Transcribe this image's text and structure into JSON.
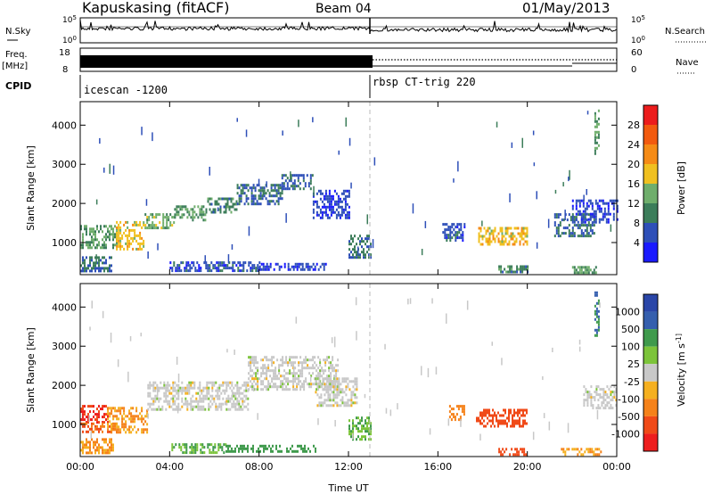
{
  "header": {
    "station": "Kapuskasing (fitACF)",
    "beam": "Beam 04",
    "date": "01/May/2013"
  },
  "top_panels": {
    "nsky_label": "N.Sky",
    "nsky_ticks": [
      "10^5",
      "10^0"
    ],
    "nsearch_ticks": [
      "10^5",
      "10^0"
    ],
    "nsearch_label": "N.Search",
    "freq_label": "Freq.",
    "freq_unit": "[MHz]",
    "freq_ticks": [
      "18",
      "8"
    ],
    "nave_ticks": [
      "60",
      "0"
    ],
    "nave_label": "Nave",
    "cpid_label": "CPID",
    "cpid_segments": [
      "icescan -1200",
      "rbsp CT-trig 220"
    ],
    "cpid_switch_hour": 13.0
  },
  "colors": {
    "power": [
      "#1a1aff",
      "#2e4fb8",
      "#3c7d5a",
      "#6fae6c",
      "#f0c020",
      "#f58b16",
      "#f25a0f",
      "#ec1c1c"
    ],
    "velocity": [
      "#ee1e1e",
      "#f04a18",
      "#f5821a",
      "#f5b020",
      "#c8c8c8",
      "#7cc43a",
      "#3f9a4c",
      "#355fae",
      "#2a46a8"
    ],
    "ground_scatter": "#a0a0a0"
  },
  "chart_data": [
    {
      "type": "heatmap",
      "title": "Power",
      "xlabel": "",
      "ylabel": "Slant Range [km]",
      "x_ticks": [
        "00:00",
        "04:00",
        "08:00",
        "12:00",
        "16:00",
        "20:00",
        "00:00"
      ],
      "xlim_hours": [
        0,
        24
      ],
      "ylim_km": [
        180,
        4600
      ],
      "y_ticks": [
        1000,
        2000,
        3000,
        4000
      ],
      "colorbar_label": "Power [dB]",
      "colorbar_ticks": [
        "4",
        "8",
        "12",
        "16",
        "20",
        "24",
        "28"
      ],
      "colorbar_range": [
        0,
        32
      ],
      "regions": [
        {
          "t": [
            0.0,
            1.6
          ],
          "r": [
            850,
            1450
          ],
          "v": 12
        },
        {
          "t": [
            1.6,
            2.8
          ],
          "r": [
            850,
            1550
          ],
          "v": 18
        },
        {
          "t": [
            2.8,
            4.2
          ],
          "r": [
            1400,
            1750
          ],
          "v": 14
        },
        {
          "t": [
            4.2,
            5.6
          ],
          "r": [
            1600,
            1950
          ],
          "v": 12
        },
        {
          "t": [
            5.6,
            7.0
          ],
          "r": [
            1750,
            2150
          ],
          "v": 10
        },
        {
          "t": [
            7.0,
            9.0
          ],
          "r": [
            2000,
            2500
          ],
          "v": 8
        },
        {
          "t": [
            9.0,
            10.4
          ],
          "r": [
            2400,
            2750
          ],
          "v": 7
        },
        {
          "t": [
            10.4,
            12.0
          ],
          "r": [
            1600,
            2350
          ],
          "v": 5
        },
        {
          "t": [
            0.0,
            1.4
          ],
          "r": [
            300,
            650
          ],
          "v": 8
        },
        {
          "t": [
            4.0,
            8.0
          ],
          "r": [
            300,
            520
          ],
          "v": 6
        },
        {
          "t": [
            8.0,
            11.0
          ],
          "r": [
            280,
            480
          ],
          "v": 5
        },
        {
          "t": [
            12.0,
            13.0
          ],
          "r": [
            650,
            1200
          ],
          "v": 9
        },
        {
          "t": [
            16.2,
            17.2
          ],
          "r": [
            1050,
            1500
          ],
          "v": 6
        },
        {
          "t": [
            17.8,
            20.0
          ],
          "r": [
            950,
            1400
          ],
          "v": 18
        },
        {
          "t": [
            18.7,
            20.0
          ],
          "r": [
            250,
            420
          ],
          "v": 10
        },
        {
          "t": [
            21.2,
            23.0
          ],
          "r": [
            1200,
            1750
          ],
          "v": 8
        },
        {
          "t": [
            22.0,
            24.0
          ],
          "r": [
            1500,
            2100
          ],
          "v": 5
        },
        {
          "t": [
            22.0,
            23.1
          ],
          "r": [
            230,
            400
          ],
          "v": 12
        },
        {
          "t": [
            23.0,
            23.2
          ],
          "r": [
            3300,
            4400
          ],
          "v": 12
        }
      ]
    },
    {
      "type": "heatmap",
      "title": "Velocity",
      "xlabel": "Time UT",
      "ylabel": "Slant Range [km]",
      "x_ticks": [
        "00:00",
        "04:00",
        "08:00",
        "12:00",
        "16:00",
        "20:00",
        "00:00"
      ],
      "xlim_hours": [
        0,
        24
      ],
      "ylim_km": [
        180,
        4600
      ],
      "y_ticks": [
        1000,
        2000,
        3000,
        4000
      ],
      "colorbar_label": "Velocity [m s^-1]",
      "colorbar_ticks": [
        "1000",
        "500",
        "100",
        "25",
        "-25",
        "-100",
        "-500",
        "-1000"
      ],
      "regions": [
        {
          "t": [
            0.0,
            1.2
          ],
          "r": [
            1050,
            1500
          ],
          "v": -1000
        },
        {
          "t": [
            0.0,
            1.6
          ],
          "r": [
            800,
            1050
          ],
          "v": -500
        },
        {
          "t": [
            1.2,
            3.0
          ],
          "r": [
            800,
            1450
          ],
          "v": -100
        },
        {
          "t": [
            3.0,
            7.5
          ],
          "r": [
            1400,
            2100
          ],
          "v": 0
        },
        {
          "t": [
            7.5,
            11.5
          ],
          "r": [
            1900,
            2750
          ],
          "v": 0
        },
        {
          "t": [
            10.5,
            12.4
          ],
          "r": [
            1500,
            2200
          ],
          "v": 0
        },
        {
          "t": [
            0.0,
            1.5
          ],
          "r": [
            300,
            650
          ],
          "v": -100
        },
        {
          "t": [
            4.0,
            6.5
          ],
          "r": [
            300,
            520
          ],
          "v": 100
        },
        {
          "t": [
            6.5,
            10.5
          ],
          "r": [
            280,
            480
          ],
          "v": 250
        },
        {
          "t": [
            12.0,
            13.0
          ],
          "r": [
            650,
            1200
          ],
          "v": 100
        },
        {
          "t": [
            16.5,
            17.2
          ],
          "r": [
            1100,
            1500
          ],
          "v": -250
        },
        {
          "t": [
            17.7,
            20.0
          ],
          "r": [
            950,
            1400
          ],
          "v": -700
        },
        {
          "t": [
            18.7,
            20.0
          ],
          "r": [
            250,
            400
          ],
          "v": -700
        },
        {
          "t": [
            22.5,
            24.0
          ],
          "r": [
            1400,
            2000
          ],
          "v": 0
        },
        {
          "t": [
            21.5,
            23.3
          ],
          "r": [
            230,
            400
          ],
          "v": -100
        },
        {
          "t": [
            23.0,
            23.2
          ],
          "r": [
            3300,
            4400
          ],
          "v": 500
        }
      ]
    }
  ]
}
